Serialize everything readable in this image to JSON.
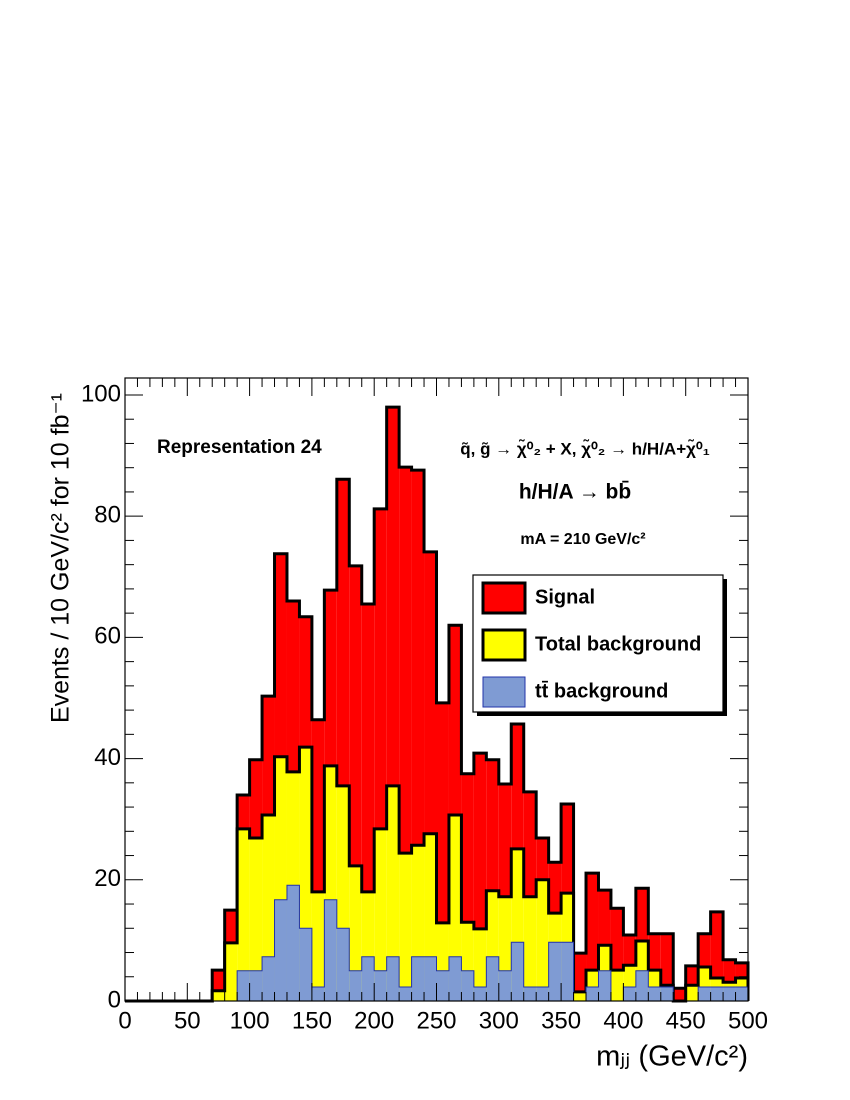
{
  "chart_data": {
    "type": "histogram",
    "x_label": "mⱼⱼ (GeV/c²)",
    "y_label": "Events / 10 GeV/c² for 10 fb⁻¹",
    "annotations": [
      "Representation 24",
      "q̃, g̃ → χ̃⁰₂ + X,  χ̃⁰₂ → h/H/A+χ̃⁰₁",
      "h/H/A → bb̄",
      "mA = 210 GeV/c²"
    ],
    "bins": [
      0,
      10,
      20,
      30,
      40,
      50,
      60,
      70,
      80,
      90,
      100,
      110,
      120,
      130,
      140,
      150,
      160,
      170,
      180,
      190,
      200,
      210,
      220,
      230,
      240,
      250,
      260,
      270,
      280,
      290,
      300,
      310,
      320,
      330,
      340,
      350,
      360,
      370,
      380,
      390,
      400,
      410,
      420,
      430,
      440,
      450,
      460,
      470,
      480,
      490,
      500
    ],
    "series": [
      {
        "name": "Signal",
        "color": "#ff0000",
        "values": [
          0,
          0,
          0,
          0,
          0,
          0,
          0,
          3.4,
          5.4,
          5.6,
          12.9,
          19.6,
          33.5,
          28.2,
          21.5,
          28.4,
          29,
          50.6,
          49.5,
          47.5,
          52.8,
          62.5,
          63.7,
          61.9,
          46.5,
          36.3,
          31.3,
          24.5,
          29,
          21.6,
          18.6,
          20.6,
          17.3,
          6.9,
          8.4,
          14.7,
          6.4,
          16,
          9.1,
          10.2,
          5,
          8.7,
          6,
          8.5,
          2.1,
          3.2,
          5.5,
          10.9,
          3.7,
          2.5
        ]
      },
      {
        "name": "Total background",
        "color": "#ffff00",
        "values": [
          0,
          0,
          0,
          0,
          0,
          0,
          0,
          1.7,
          9.6,
          28.4,
          26.9,
          30.7,
          40.3,
          37.8,
          41.9,
          18,
          38.8,
          35.5,
          22.3,
          18,
          28.4,
          35.5,
          24.4,
          25.7,
          27.6,
          12.9,
          30.7,
          13,
          11.9,
          18.2,
          17.2,
          25.1,
          17.2,
          20,
          14.5,
          17.8,
          1.5,
          5.1,
          9.2,
          5.1,
          5.9,
          9.9,
          5.1,
          2.6,
          0,
          2.6,
          5.6,
          3.8,
          3.1,
          3.8
        ]
      },
      {
        "name": "tt̄ background",
        "color": "#7f9bd3",
        "values": [
          0,
          0,
          0,
          0,
          0,
          0,
          0,
          0,
          0,
          5,
          5,
          7.3,
          16.7,
          19.1,
          12,
          2.3,
          16.7,
          12,
          5,
          7.3,
          5,
          7.3,
          2.3,
          7.3,
          7.3,
          5,
          7.3,
          5,
          2.3,
          7.3,
          5,
          9.7,
          2.3,
          2.3,
          9.7,
          9.7,
          0,
          2.3,
          5,
          0,
          2.3,
          5,
          2.3,
          2.3,
          0,
          0,
          2.3,
          2.3,
          2.3,
          2.3
        ]
      }
    ],
    "xlim": [
      0,
      500
    ],
    "xticks": [
      0,
      50,
      100,
      150,
      200,
      250,
      300,
      350,
      400,
      450,
      500
    ],
    "ylim": [
      0,
      102.8
    ],
    "yticks": [
      0,
      20,
      40,
      60,
      80,
      100
    ],
    "legend_position": "upper right"
  }
}
